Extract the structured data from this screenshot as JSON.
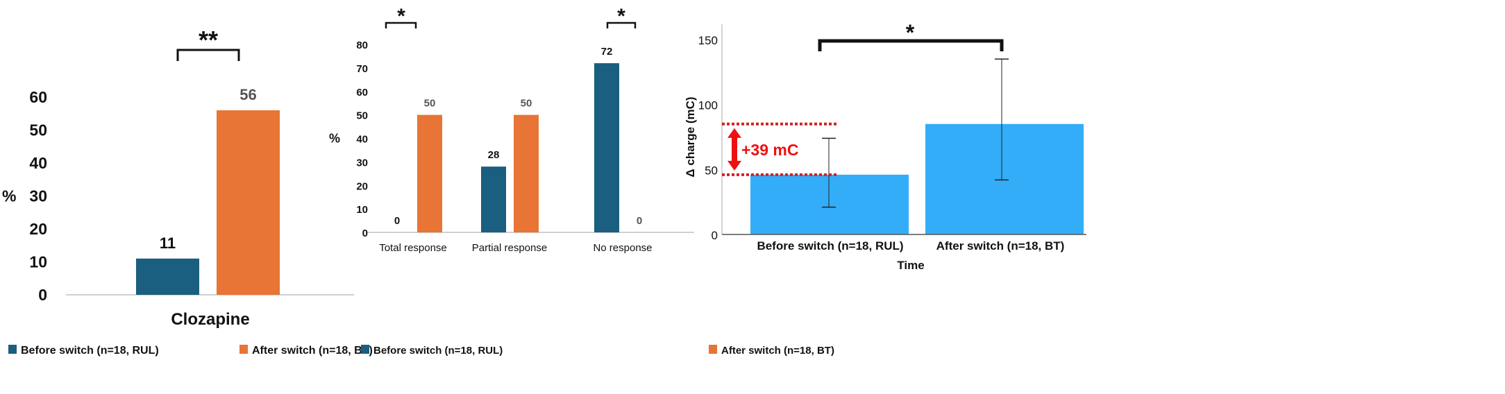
{
  "chart_data": [
    {
      "type": "bar",
      "title": "",
      "xlabel": "",
      "ylabel": "%",
      "ylim": [
        0,
        60
      ],
      "yticks": [
        "0",
        "10",
        "20",
        "30",
        "40",
        "50",
        "60"
      ],
      "categories": [
        "Clozapine"
      ],
      "series": [
        {
          "name": "Before switch (n=18, RUL)",
          "values": [
            11
          ],
          "color": "#1a5e80"
        },
        {
          "name": "After switch (n=18, BT)",
          "values": [
            56
          ],
          "color": "#e87435"
        }
      ],
      "annotations": [
        {
          "label": "**",
          "category": "Clozapine"
        }
      ],
      "legend": "bottom"
    },
    {
      "type": "bar",
      "title": "",
      "xlabel": "",
      "ylabel": "%",
      "ylim": [
        0,
        80
      ],
      "yticks": [
        "0",
        "10",
        "20",
        "30",
        "40",
        "50",
        "60",
        "70",
        "80"
      ],
      "categories": [
        "Total response",
        "Partial response",
        "No response"
      ],
      "series": [
        {
          "name": "Before switch (n=18, RUL)",
          "values": [
            0,
            28,
            72
          ],
          "color": "#1a5e80"
        },
        {
          "name": "After switch (n=18, BT)",
          "values": [
            50,
            50,
            0
          ],
          "color": "#e87435"
        }
      ],
      "annotations": [
        {
          "label": "*",
          "category": "Total response"
        },
        {
          "label": "*",
          "category": "No response"
        }
      ],
      "legend": "bottom"
    },
    {
      "type": "bar",
      "title": "",
      "xlabel": "Time",
      "ylabel": "Δ charge (mC)",
      "ylim": [
        0,
        150
      ],
      "yticks": [
        "0",
        "50",
        "100",
        "150"
      ],
      "categories": [
        "Before switch (n=18, RUL)",
        "After switch (n=18, BT)"
      ],
      "values": [
        46,
        85
      ],
      "error_low": [
        21,
        42
      ],
      "error_high": [
        74,
        135
      ],
      "color": "#33adf8",
      "annotations": [
        {
          "label": "*"
        },
        {
          "label": "+39 mC",
          "color": "#ee1111"
        }
      ]
    }
  ]
}
